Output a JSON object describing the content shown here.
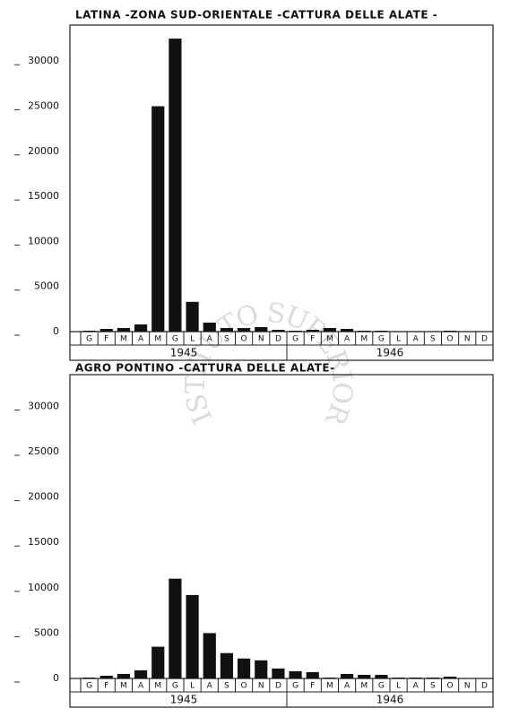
{
  "chart_data": [
    {
      "type": "bar",
      "title": "LATINA -ZONA SUD-ORIENTALE -CATTURA DELLE ALATE -",
      "categories": [
        "G",
        "F",
        "M",
        "A",
        "M",
        "G",
        "L",
        "A",
        "S",
        "O",
        "N",
        "D",
        "G",
        "F",
        "M",
        "A",
        "M",
        "G",
        "L",
        "A",
        "S",
        "O",
        "N",
        "D"
      ],
      "years": [
        "1945",
        "1946"
      ],
      "values": [
        100,
        300,
        400,
        800,
        25000,
        32500,
        3300,
        1000,
        400,
        400,
        500,
        200,
        100,
        200,
        400,
        300,
        100,
        100,
        50,
        50,
        50,
        100,
        50,
        0
      ],
      "color": "#111111",
      "ylim": [
        0,
        34000
      ],
      "yticks": [
        0,
        5000,
        10000,
        15000,
        20000,
        25000,
        30000
      ]
    },
    {
      "type": "bar",
      "title": "AGRO PONTINO -CATTURA DELLE ALATE-",
      "categories": [
        "G",
        "F",
        "M",
        "A",
        "M",
        "G",
        "L",
        "A",
        "S",
        "O",
        "N",
        "D",
        "G",
        "F",
        "M",
        "A",
        "M",
        "G",
        "L",
        "A",
        "S",
        "O",
        "N",
        "D"
      ],
      "years": [
        "1945",
        "1946"
      ],
      "values": [
        100,
        300,
        500,
        900,
        3500,
        11000,
        9200,
        5000,
        2800,
        2200,
        2000,
        1100,
        800,
        700,
        100,
        500,
        400,
        400,
        100,
        100,
        100,
        200,
        0,
        0
      ],
      "color": "#111111",
      "ylim": [
        0,
        33500
      ],
      "yticks": [
        0,
        5000,
        10000,
        15000,
        20000,
        25000,
        30000
      ]
    }
  ],
  "watermark": "ISTITUTO SUPERIORE DI SANITÀ"
}
